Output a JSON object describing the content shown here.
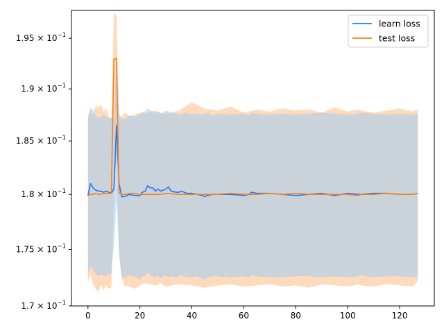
{
  "chart_data": {
    "type": "line",
    "title": "",
    "xlabel": "",
    "ylabel": "",
    "xlim": [
      -6.35,
      133.35
    ],
    "ylim": [
      0.17,
      0.1978
    ],
    "yscale": "log",
    "grid": false,
    "legend_position": "top-right",
    "x_ticks": [
      0,
      20,
      40,
      60,
      80,
      100,
      120
    ],
    "x_tick_labels": [
      "0",
      "20",
      "40",
      "60",
      "80",
      "100",
      "120"
    ],
    "y_ticks": [
      0.17,
      0.175,
      0.18,
      0.185,
      0.19,
      0.195
    ],
    "y_tick_labels": [
      {
        "mantissa": "1.7",
        "exp": "−1"
      },
      {
        "mantissa": "1.75",
        "exp": "−1"
      },
      {
        "mantissa": "1.8",
        "exp": "−1"
      },
      {
        "mantissa": "1.85",
        "exp": "−1"
      },
      {
        "mantissa": "1.9",
        "exp": "−1"
      },
      {
        "mantissa": "1.95",
        "exp": "−1"
      }
    ],
    "series": [
      {
        "name": "learn loss",
        "color": "#1f77ff",
        "band_color": "#9fcaf2",
        "x": [
          0,
          1,
          2,
          3,
          4,
          5,
          6,
          7,
          8,
          9,
          10,
          11,
          12,
          13,
          14,
          16,
          18,
          20,
          21,
          22,
          23,
          24,
          25,
          26,
          27,
          28,
          29,
          30,
          31,
          32,
          34,
          35,
          36,
          38,
          40,
          42,
          44,
          45,
          46,
          48,
          50,
          55,
          60,
          62,
          63,
          65,
          70,
          75,
          80,
          85,
          90,
          95,
          100,
          104,
          105,
          110,
          115,
          120,
          125,
          127
        ],
        "values": [
          0.1799,
          0.181,
          0.1806,
          0.1804,
          0.1803,
          0.1803,
          0.1802,
          0.1803,
          0.1802,
          0.1801,
          0.1805,
          0.1865,
          0.181,
          0.1798,
          0.1798,
          0.18,
          0.1799,
          0.1799,
          0.1802,
          0.1803,
          0.1808,
          0.1806,
          0.1806,
          0.1803,
          0.1805,
          0.1803,
          0.1804,
          0.1805,
          0.1807,
          0.1803,
          0.1802,
          0.1802,
          0.1803,
          0.1801,
          0.1801,
          0.18,
          0.1799,
          0.1798,
          0.1799,
          0.18,
          0.18,
          0.18,
          0.1799,
          0.18,
          0.1802,
          0.1801,
          0.1801,
          0.18,
          0.1799,
          0.18,
          0.1801,
          0.1799,
          0.1801,
          0.18,
          0.18,
          0.1801,
          0.1801,
          0.18,
          0.18,
          0.1801
        ],
        "lower": [
          0.1728,
          0.1735,
          0.1732,
          0.1728,
          0.1726,
          0.1728,
          0.1727,
          0.1726,
          0.1728,
          0.1728,
          0.1755,
          0.1795,
          0.1745,
          0.1726,
          0.1725,
          0.1727,
          0.1726,
          0.1723,
          0.1726,
          0.1726,
          0.1729,
          0.1727,
          0.1726,
          0.1725,
          0.1727,
          0.1724,
          0.1726,
          0.1727,
          0.1725,
          0.1726,
          0.1725,
          0.1726,
          0.1727,
          0.1725,
          0.1725,
          0.1726,
          0.1724,
          0.1723,
          0.1725,
          0.1726,
          0.1726,
          0.1725,
          0.1726,
          0.1725,
          0.1727,
          0.1726,
          0.1725,
          0.1725,
          0.1726,
          0.1726,
          0.1725,
          0.1726,
          0.1725,
          0.1726,
          0.1727,
          0.1725,
          0.1726,
          0.1726,
          0.1725,
          0.1726
        ],
        "upper": [
          0.1871,
          0.1882,
          0.1879,
          0.1874,
          0.1872,
          0.1873,
          0.1875,
          0.1873,
          0.1872,
          0.1872,
          0.1872,
          0.1932,
          0.1876,
          0.1871,
          0.1871,
          0.1874,
          0.1873,
          0.1875,
          0.1878,
          0.1878,
          0.1881,
          0.1879,
          0.1878,
          0.1877,
          0.1878,
          0.1876,
          0.1877,
          0.1879,
          0.1878,
          0.1877,
          0.1876,
          0.1875,
          0.1876,
          0.1877,
          0.1875,
          0.1876,
          0.1875,
          0.1876,
          0.1877,
          0.1874,
          0.1876,
          0.1875,
          0.1876,
          0.1874,
          0.1877,
          0.1876,
          0.1875,
          0.1876,
          0.1875,
          0.1876,
          0.1877,
          0.1876,
          0.1875,
          0.1876,
          0.1877,
          0.1876,
          0.1875,
          0.1876,
          0.1875,
          0.1876
        ]
      },
      {
        "name": "test loss",
        "color": "#ff7f0e",
        "band_color": "#ffcfa5",
        "x": [
          0,
          1,
          2,
          3,
          4,
          5,
          6,
          7,
          8,
          9,
          10,
          11,
          12,
          13,
          14,
          16,
          18,
          20,
          22,
          24,
          26,
          28,
          30,
          35,
          40,
          45,
          50,
          55,
          60,
          65,
          70,
          75,
          80,
          85,
          90,
          95,
          100,
          104,
          105,
          110,
          115,
          120,
          125,
          127
        ],
        "values": [
          0.1799,
          0.18,
          0.18,
          0.1801,
          0.18,
          0.18,
          0.1801,
          0.1801,
          0.1801,
          0.1801,
          0.1929,
          0.193,
          0.1801,
          0.18,
          0.18,
          0.1801,
          0.1801,
          0.18,
          0.18,
          0.18,
          0.18,
          0.18,
          0.1801,
          0.18,
          0.18,
          0.18,
          0.18,
          0.1801,
          0.18,
          0.18,
          0.1801,
          0.18,
          0.1801,
          0.18,
          0.18,
          0.18,
          0.18,
          0.1799,
          0.18,
          0.18,
          0.1801,
          0.18,
          0.18,
          0.1801
        ],
        "lower": [
          0.1722,
          0.1728,
          0.1718,
          0.1715,
          0.1712,
          0.1718,
          0.1714,
          0.1718,
          0.1715,
          0.1716,
          0.1795,
          0.1835,
          0.1745,
          0.1724,
          0.1718,
          0.1717,
          0.1715,
          0.1718,
          0.172,
          0.1719,
          0.1718,
          0.172,
          0.1717,
          0.1719,
          0.1718,
          0.1716,
          0.1718,
          0.1719,
          0.1717,
          0.1718,
          0.1719,
          0.1717,
          0.1718,
          0.1716,
          0.1719,
          0.1718,
          0.1717,
          0.1719,
          0.1718,
          0.1717,
          0.1719,
          0.1718,
          0.1717,
          0.1722
        ],
        "upper": [
          0.1875,
          0.188,
          0.1875,
          0.1884,
          0.1882,
          0.1885,
          0.1878,
          0.1881,
          0.1873,
          0.1872,
          0.1975,
          0.1973,
          0.1873,
          0.1873,
          0.1877,
          0.1874,
          0.1875,
          0.1877,
          0.1876,
          0.1878,
          0.1879,
          0.1877,
          0.1876,
          0.1879,
          0.1887,
          0.1881,
          0.1879,
          0.1883,
          0.1877,
          0.188,
          0.1878,
          0.1881,
          0.1879,
          0.188,
          0.1877,
          0.1882,
          0.1878,
          0.188,
          0.1879,
          0.1877,
          0.1879,
          0.1881,
          0.1878,
          0.188
        ]
      }
    ]
  }
}
